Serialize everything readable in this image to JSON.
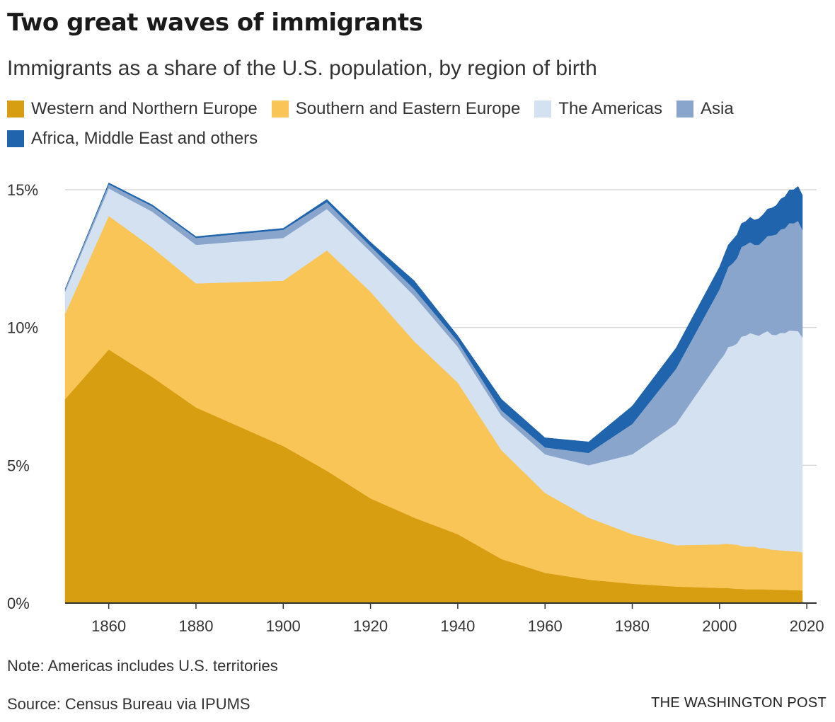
{
  "title": "Two great waves of immigrants",
  "subtitle": "Immigrants as a share of the U.S. population, by region of birth",
  "note": "Note: Americas includes U.S. territories",
  "source": "Source: Census Bureau via IPUMS",
  "credit": "THE WASHINGTON POST",
  "chart_data": {
    "type": "area",
    "stacked": true,
    "x": [
      1850,
      1860,
      1870,
      1880,
      1900,
      1910,
      1920,
      1930,
      1940,
      1950,
      1960,
      1970,
      1980,
      1990,
      2000,
      2001,
      2002,
      2003,
      2004,
      2005,
      2006,
      2007,
      2008,
      2009,
      2010,
      2011,
      2012,
      2013,
      2014,
      2015,
      2016,
      2017,
      2018,
      2019
    ],
    "series": [
      {
        "name": "Western and Northern Europe",
        "color": "#d79e12",
        "values": [
          7.4,
          9.2,
          8.2,
          7.1,
          5.7,
          4.8,
          3.8,
          3.1,
          2.5,
          1.6,
          1.1,
          0.85,
          0.7,
          0.6,
          0.55,
          0.55,
          0.55,
          0.53,
          0.52,
          0.52,
          0.5,
          0.5,
          0.5,
          0.5,
          0.5,
          0.49,
          0.49,
          0.48,
          0.48,
          0.48,
          0.47,
          0.47,
          0.47,
          0.46
        ]
      },
      {
        "name": "Southern and Eastern Europe",
        "color": "#f9c556",
        "values": [
          3.1,
          4.85,
          4.7,
          4.5,
          6.0,
          8.0,
          7.5,
          6.4,
          5.5,
          3.95,
          2.9,
          2.25,
          1.8,
          1.5,
          1.58,
          1.6,
          1.6,
          1.6,
          1.6,
          1.55,
          1.55,
          1.55,
          1.55,
          1.5,
          1.5,
          1.48,
          1.45,
          1.45,
          1.43,
          1.42,
          1.42,
          1.41,
          1.4,
          1.38
        ]
      },
      {
        "name": "The Americas",
        "color": "#d3e1f0",
        "values": [
          0.8,
          1.0,
          1.3,
          1.4,
          1.55,
          1.5,
          1.45,
          1.65,
          1.3,
          1.25,
          1.4,
          1.9,
          2.9,
          4.4,
          6.67,
          6.85,
          7.15,
          7.2,
          7.3,
          7.6,
          7.65,
          7.75,
          7.7,
          7.7,
          7.8,
          7.9,
          7.8,
          7.8,
          7.9,
          7.9,
          8.0,
          8.0,
          8.0,
          7.8
        ]
      },
      {
        "name": "Asia",
        "color": "#8aa5cc",
        "values": [
          0.1,
          0.15,
          0.2,
          0.25,
          0.3,
          0.25,
          0.2,
          0.25,
          0.2,
          0.2,
          0.25,
          0.45,
          1.1,
          2.0,
          2.6,
          2.8,
          2.9,
          3.0,
          3.1,
          3.25,
          3.3,
          3.3,
          3.25,
          3.3,
          3.35,
          3.45,
          3.6,
          3.65,
          3.75,
          3.8,
          3.9,
          3.9,
          4.0,
          3.9
        ]
      },
      {
        "name": "Africa, Middle East and others",
        "color": "#1f64ac",
        "values": [
          0.0,
          0.05,
          0.05,
          0.05,
          0.05,
          0.1,
          0.15,
          0.3,
          0.2,
          0.4,
          0.35,
          0.4,
          0.65,
          0.75,
          0.8,
          0.8,
          0.8,
          0.85,
          0.85,
          0.85,
          0.85,
          0.9,
          0.9,
          0.95,
          0.95,
          0.98,
          1.0,
          1.05,
          1.1,
          1.15,
          1.2,
          1.22,
          1.25,
          1.26
        ]
      }
    ],
    "xticks": [
      "1860",
      "1880",
      "1900",
      "1920",
      "1940",
      "1960",
      "1980",
      "2000",
      "2020"
    ],
    "yticks": [
      "0%",
      "5%",
      "10%",
      "15%"
    ],
    "xlim": [
      1850,
      2019
    ],
    "ylim": [
      0,
      15
    ],
    "grid": true,
    "legend_position": "top"
  }
}
